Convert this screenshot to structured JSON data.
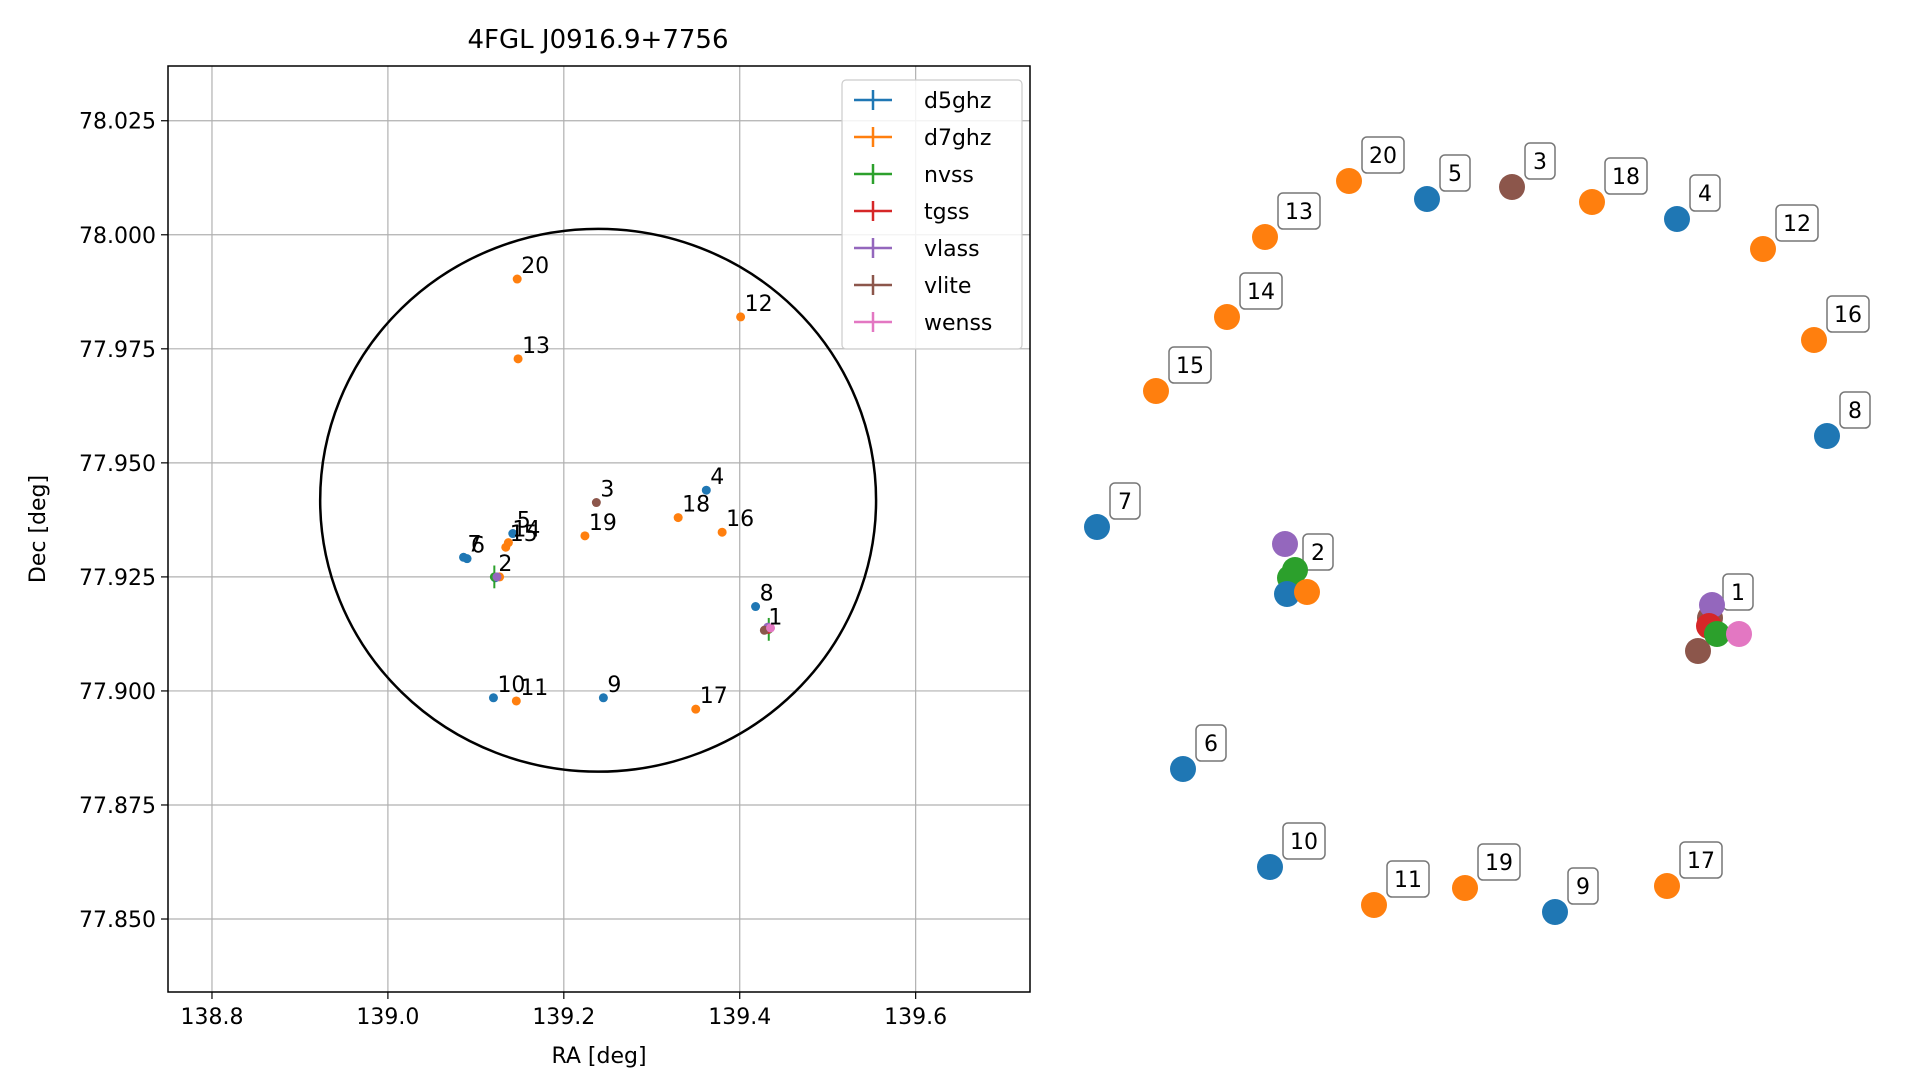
{
  "chart_data": [
    {
      "type": "scatter",
      "title": "4FGL J0916.9+7756",
      "xlabel": "RA [deg]",
      "ylabel": "Dec [deg]",
      "xlim": [
        138.75,
        139.73
      ],
      "ylim": [
        77.834,
        78.037
      ],
      "xticks": [
        138.8,
        139.0,
        139.2,
        139.4,
        139.6
      ],
      "xtick_labels": [
        "138.8",
        "139.0",
        "139.2",
        "139.4",
        "139.6"
      ],
      "yticks": [
        77.85,
        77.875,
        77.9,
        77.925,
        77.95,
        77.975,
        78.0,
        78.025
      ],
      "ytick_labels": [
        "77.850",
        "77.875",
        "77.900",
        "77.925",
        "77.950",
        "77.975",
        "78.000",
        "78.025"
      ],
      "grid": true,
      "legend_position": "top-right",
      "ellipse": {
        "ra_center": 139.239,
        "dec_center": 77.9418,
        "ra_half_width": 0.316,
        "dec_half_height": 0.0595,
        "tilt_deg": 0
      },
      "series": [
        {
          "name": "d5ghz",
          "color": "#1f77b4"
        },
        {
          "name": "d7ghz",
          "color": "#ff7f0e"
        },
        {
          "name": "nvss",
          "color": "#2ca02c"
        },
        {
          "name": "tgss",
          "color": "#d62728"
        },
        {
          "name": "vlass",
          "color": "#9467bd"
        },
        {
          "name": "vlite",
          "color": "#8c564b"
        },
        {
          "name": "wenss",
          "color": "#e377c2"
        }
      ],
      "points": [
        {
          "series": 0,
          "ra": 139.362,
          "dec": 77.944,
          "label": "4"
        },
        {
          "series": 0,
          "ra": 139.142,
          "dec": 77.9345,
          "label": "5"
        },
        {
          "series": 0,
          "ra": 139.09,
          "dec": 77.929,
          "label": "6"
        },
        {
          "series": 0,
          "ra": 139.086,
          "dec": 77.9293,
          "label": "7"
        },
        {
          "series": 0,
          "ra": 139.418,
          "dec": 77.9185,
          "label": "8"
        },
        {
          "series": 0,
          "ra": 139.245,
          "dec": 77.8985,
          "label": "9"
        },
        {
          "series": 0,
          "ra": 139.12,
          "dec": 77.8985,
          "label": "10"
        },
        {
          "series": 0,
          "ra": 139.122,
          "dec": 77.9248,
          "label": ""
        },
        {
          "series": 1,
          "ra": 139.401,
          "dec": 77.982,
          "label": "12"
        },
        {
          "series": 1,
          "ra": 139.148,
          "dec": 77.9728,
          "label": "13"
        },
        {
          "series": 1,
          "ra": 139.137,
          "dec": 77.9325,
          "label": "14"
        },
        {
          "series": 1,
          "ra": 139.134,
          "dec": 77.9315,
          "label": "15"
        },
        {
          "series": 1,
          "ra": 139.38,
          "dec": 77.9348,
          "label": "16"
        },
        {
          "series": 1,
          "ra": 139.35,
          "dec": 77.896,
          "label": "17"
        },
        {
          "series": 1,
          "ra": 139.33,
          "dec": 77.938,
          "label": "18"
        },
        {
          "series": 1,
          "ra": 139.224,
          "dec": 77.934,
          "label": "19"
        },
        {
          "series": 1,
          "ra": 139.147,
          "dec": 77.9903,
          "label": "20"
        },
        {
          "series": 1,
          "ra": 139.146,
          "dec": 77.8978,
          "label": "11"
        },
        {
          "series": 1,
          "ra": 139.127,
          "dec": 77.925,
          "label": ""
        },
        {
          "series": 2,
          "ra": 139.121,
          "dec": 77.925,
          "label": "2",
          "dec_err": 0.0025
        },
        {
          "series": 2,
          "ra": 139.433,
          "dec": 77.9135,
          "label": "",
          "dec_err": 0.0025
        },
        {
          "series": 3,
          "ra": 139.432,
          "dec": 77.9135,
          "label": ""
        },
        {
          "series": 4,
          "ra": 139.124,
          "dec": 77.925,
          "label": ""
        },
        {
          "series": 4,
          "ra": 139.432,
          "dec": 77.914,
          "label": ""
        },
        {
          "series": 5,
          "ra": 139.237,
          "dec": 77.9413,
          "label": "3"
        },
        {
          "series": 5,
          "ra": 139.428,
          "dec": 77.9133,
          "label": "1"
        },
        {
          "series": 6,
          "ra": 139.435,
          "dec": 77.9138,
          "label": ""
        }
      ]
    },
    {
      "type": "scatter",
      "description_free": true,
      "labeled_points": [
        {
          "label": "20",
          "series": 1
        },
        {
          "label": "5",
          "series": 0
        },
        {
          "label": "3",
          "series": 5
        },
        {
          "label": "18",
          "series": 1
        },
        {
          "label": "4",
          "series": 0
        },
        {
          "label": "13",
          "series": 1
        },
        {
          "label": "12",
          "series": 1
        },
        {
          "label": "14",
          "series": 1
        },
        {
          "label": "16",
          "series": 1
        },
        {
          "label": "15",
          "series": 1
        },
        {
          "label": "8",
          "series": 0
        },
        {
          "label": "7",
          "series": 0
        },
        {
          "label": "2",
          "series": 2
        },
        {
          "label": "1",
          "series": 5
        },
        {
          "label": "6",
          "series": 0
        },
        {
          "label": "10",
          "series": 0
        },
        {
          "label": "11",
          "series": 1
        },
        {
          "label": "19",
          "series": 1
        },
        {
          "label": "9",
          "series": 0
        },
        {
          "label": "17",
          "series": 1
        }
      ],
      "cluster_points": [
        {
          "series": 4,
          "cluster": "2"
        },
        {
          "series": 2,
          "cluster": "2"
        },
        {
          "series": 0,
          "cluster": "2"
        },
        {
          "series": 1,
          "cluster": "2"
        },
        {
          "series": 4,
          "cluster": "1"
        },
        {
          "series": 3,
          "cluster": "1"
        },
        {
          "series": 5,
          "cluster": "1"
        },
        {
          "series": 2,
          "cluster": "1"
        },
        {
          "series": 6,
          "cluster": "1"
        }
      ]
    }
  ]
}
